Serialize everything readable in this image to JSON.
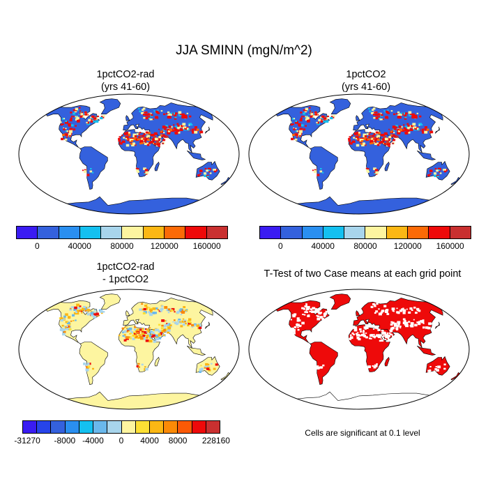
{
  "figure": {
    "title": "JJA SMINN (mgN/m^2)",
    "panels": [
      {
        "id": "rad",
        "title_line1": "1pctCO2-rad",
        "title_line2": "(yrs 41-60)"
      },
      {
        "id": "ctl",
        "title_line1": "1pctCO2",
        "title_line2": "(yrs 41-60)"
      },
      {
        "id": "diff",
        "title_line1": "1pctCO2-rad",
        "title_line2": "- 1pctCO2"
      },
      {
        "id": "ttest",
        "title_line1": "T-Test of two Case means at each grid point",
        "title_line2": ""
      }
    ],
    "note": "Cells are significant at 0.1 level"
  },
  "colorbars": {
    "absolute": {
      "colors": [
        "#3a1cf2",
        "#3461dd",
        "#2a8ff0",
        "#14c0f0",
        "#a8d5ec",
        "#fdf5a0",
        "#fbb714",
        "#fb6a06",
        "#ee0a0a",
        "#c93030"
      ],
      "labels": [
        "0",
        "40000",
        "80000",
        "120000",
        "160000"
      ]
    },
    "difference": {
      "colors": [
        "#3a1cf2",
        "#2744ea",
        "#3461dd",
        "#2a8ff0",
        "#14c0f0",
        "#6ab8ec",
        "#a8d5ec",
        "#fdf5a0",
        "#fde034",
        "#fbb714",
        "#fb8a06",
        "#fb5a06",
        "#ee0a0a",
        "#c93030"
      ],
      "labels": [
        "-31270",
        "-8000",
        "-4000",
        "0",
        "4000",
        "8000",
        "228160"
      ]
    }
  },
  "map_colors": {
    "ocean": "#ffffff",
    "land_absolute": "#3461dd",
    "land_difference": "#fdf5a0",
    "significant": "#ee0a0a",
    "coast": "#000000"
  }
}
